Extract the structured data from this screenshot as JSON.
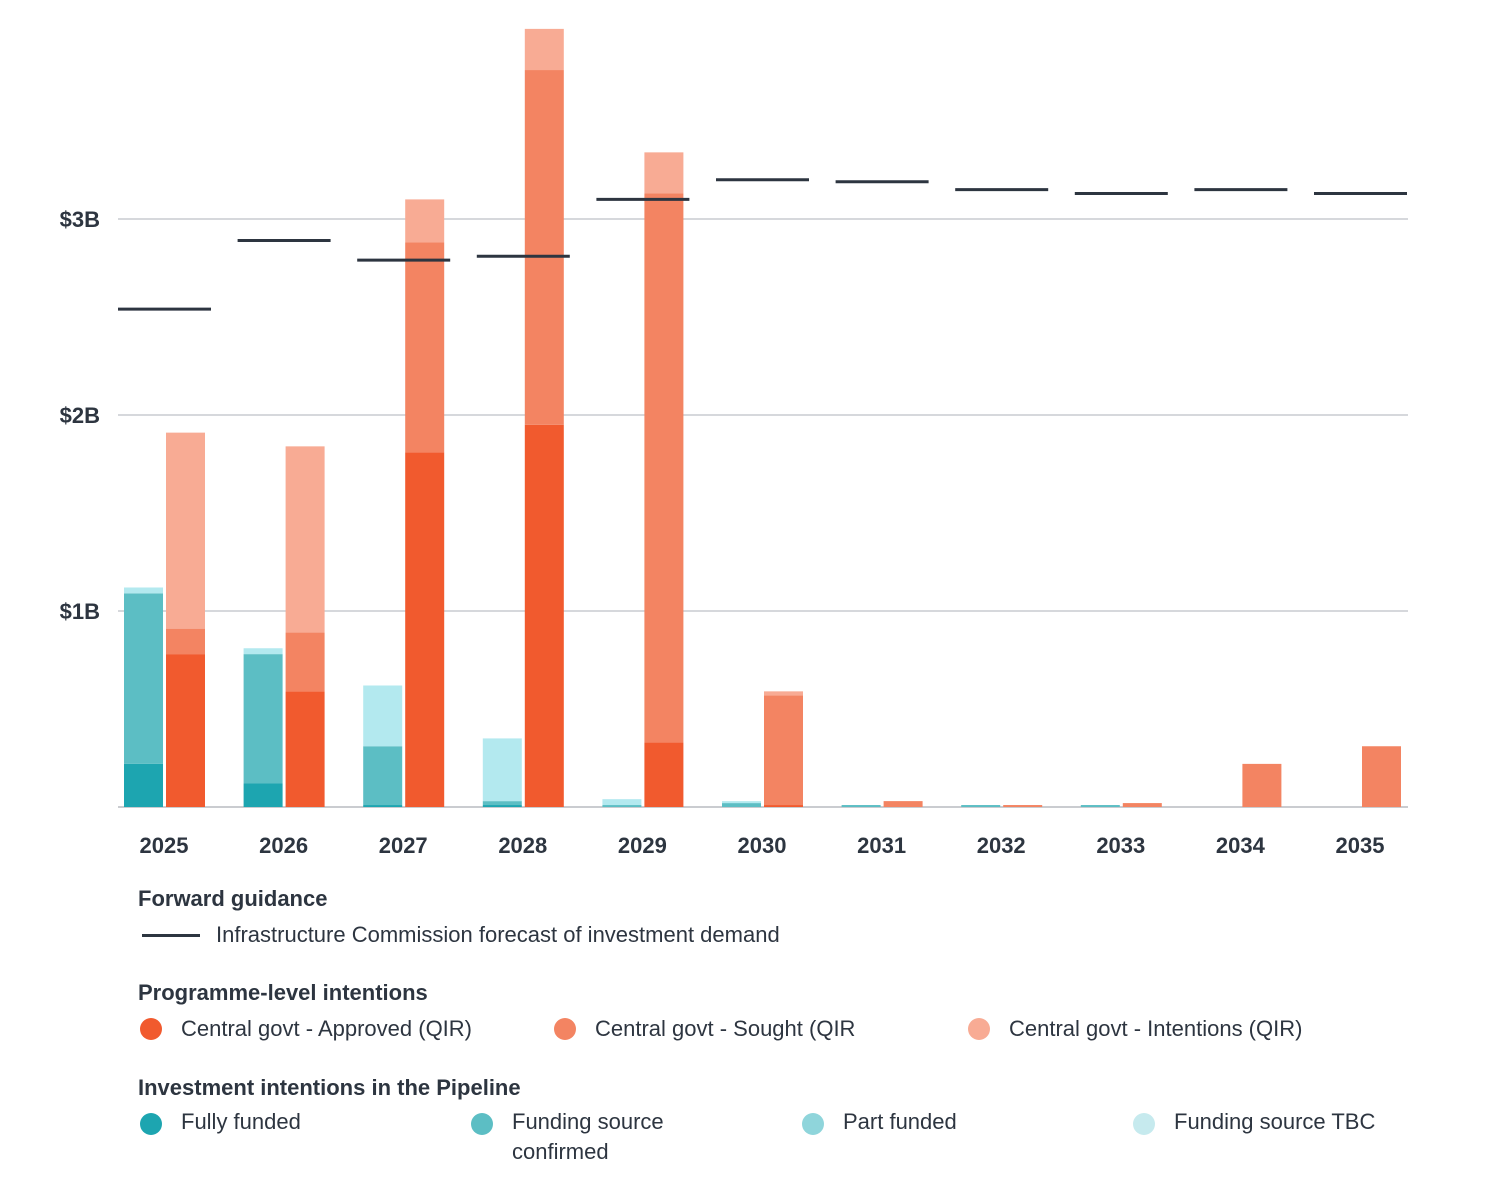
{
  "chart_data": {
    "type": "bar",
    "categories": [
      "2025",
      "2026",
      "2027",
      "2028",
      "2029",
      "2030",
      "2031",
      "2032",
      "2033",
      "2034",
      "2035"
    ],
    "yticks": [
      {
        "value": 1,
        "label": "$1B"
      },
      {
        "value": 2,
        "label": "$2B"
      },
      {
        "value": 3,
        "label": "$3B"
      }
    ],
    "ylim": [
      0,
      3.97
    ],
    "units": "$B",
    "pipeline_series": [
      {
        "name": "Fully funded",
        "color": "#1DA5B0",
        "values": [
          0.22,
          0.12,
          0.01,
          0.01,
          0.0,
          0.0,
          0.0,
          0.0,
          0.0,
          0.0,
          0.0
        ]
      },
      {
        "name": "Funding source confirmed",
        "color": "#5CBEC4",
        "values": [
          0.87,
          0.66,
          0.3,
          0.02,
          0.01,
          0.02,
          0.01,
          0.01,
          0.01,
          0.0,
          0.0
        ]
      },
      {
        "name": "Part funded",
        "color": "#8FD5DB",
        "values": [
          0,
          0,
          0,
          0,
          0,
          0,
          0,
          0,
          0,
          0,
          0
        ]
      },
      {
        "name": "Funding source TBC",
        "color": "#B3E9EF",
        "values": [
          0.03,
          0.03,
          0.31,
          0.32,
          0.03,
          0.01,
          0.0,
          0.0,
          0.0,
          0.0,
          0.0
        ]
      }
    ],
    "programme_series": [
      {
        "name": "Central govt - Approved (QIR)",
        "color": "#F15A2E",
        "values": [
          0.78,
          0.59,
          1.81,
          1.95,
          0.33,
          0.01,
          0.0,
          0.0,
          0.0,
          0.0,
          0.0
        ]
      },
      {
        "name": "Central govt - Sought (QIR",
        "color": "#F38462",
        "values": [
          0.13,
          0.3,
          1.07,
          1.81,
          2.8,
          0.56,
          0.03,
          0.01,
          0.02,
          0.22,
          0.31
        ]
      },
      {
        "name": "Central govt - Intentions (QIR)",
        "color": "#F8AB94",
        "values": [
          1.0,
          0.95,
          0.22,
          0.21,
          0.21,
          0.02,
          0.0,
          0.0,
          0.0,
          0.0,
          0.0
        ]
      }
    ],
    "forecast": {
      "name": "Infrastructure Commission forecast of investment demand",
      "color": "#2D3540",
      "values": [
        2.54,
        2.89,
        2.79,
        2.81,
        3.1,
        3.2,
        3.19,
        3.15,
        3.13,
        3.15,
        3.13
      ]
    }
  },
  "legend": {
    "forward_title": "Forward guidance",
    "programme_title": "Programme-level intentions",
    "pipeline_title": "Investment intentions in the Pipeline",
    "pipeline_labels": [
      "Fully funded",
      "Funding source confirmed",
      "Part funded",
      "Funding source TBC"
    ]
  }
}
